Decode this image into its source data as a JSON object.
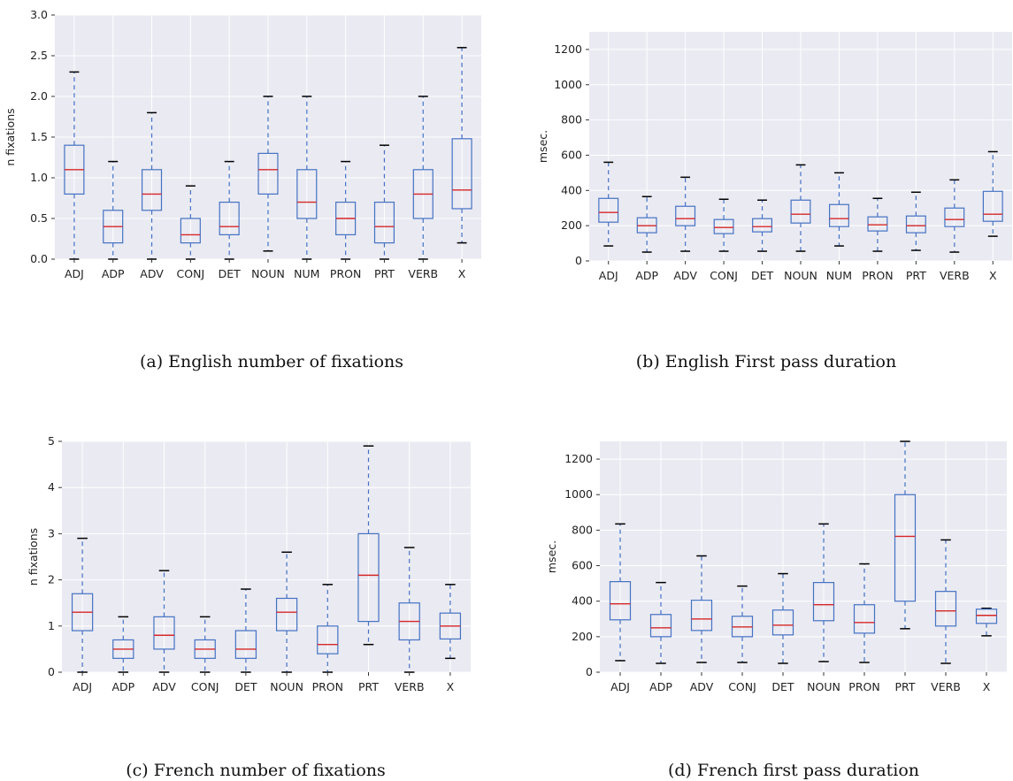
{
  "colors": {
    "plot_bg": "#eaeaf2",
    "grid": "#ffffff",
    "box": "#4472c4",
    "median": "#d62728",
    "whisker": "#4472c4",
    "cap": "#000000"
  },
  "captions": {
    "a": "(a) English number of fixations",
    "b": "(b) English First pass duration",
    "c": "(c) French number of fixations",
    "d": "(d) French first pass duration"
  },
  "chart_data": [
    {
      "type": "box",
      "ylabel": "n fixations",
      "ylim": [
        0,
        3.0
      ],
      "yticks": [
        0,
        0.5,
        1.0,
        1.5,
        2.0,
        2.5,
        3.0
      ],
      "ytick_labels": [
        "0.0",
        "0.5",
        "1.0",
        "1.5",
        "2.0",
        "2.5",
        "3.0"
      ],
      "grid": true,
      "categories": [
        "ADJ",
        "ADP",
        "ADV",
        "CONJ",
        "DET",
        "NOUN",
        "NUM",
        "PRON",
        "PRT",
        "VERB",
        "X"
      ],
      "boxes": [
        {
          "whislo": 0.0,
          "q1": 0.8,
          "med": 1.1,
          "q3": 1.4,
          "whishi": 2.3
        },
        {
          "whislo": 0.0,
          "q1": 0.2,
          "med": 0.4,
          "q3": 0.6,
          "whishi": 1.2
        },
        {
          "whislo": 0.0,
          "q1": 0.6,
          "med": 0.8,
          "q3": 1.1,
          "whishi": 1.8
        },
        {
          "whislo": 0.0,
          "q1": 0.2,
          "med": 0.3,
          "q3": 0.5,
          "whishi": 0.9
        },
        {
          "whislo": 0.0,
          "q1": 0.3,
          "med": 0.4,
          "q3": 0.7,
          "whishi": 1.2
        },
        {
          "whislo": 0.1,
          "q1": 0.8,
          "med": 1.1,
          "q3": 1.3,
          "whishi": 2.0
        },
        {
          "whislo": 0.0,
          "q1": 0.5,
          "med": 0.7,
          "q3": 1.1,
          "whishi": 2.0
        },
        {
          "whislo": 0.0,
          "q1": 0.3,
          "med": 0.5,
          "q3": 0.7,
          "whishi": 1.2
        },
        {
          "whislo": 0.0,
          "q1": 0.2,
          "med": 0.4,
          "q3": 0.7,
          "whishi": 1.4
        },
        {
          "whislo": 0.0,
          "q1": 0.5,
          "med": 0.8,
          "q3": 1.1,
          "whishi": 2.0
        },
        {
          "whislo": 0.2,
          "q1": 0.62,
          "med": 0.85,
          "q3": 1.48,
          "whishi": 2.6
        }
      ]
    },
    {
      "type": "box",
      "ylabel": "msec.",
      "ylim": [
        0,
        1300
      ],
      "yticks": [
        0,
        200,
        400,
        600,
        800,
        1000,
        1200
      ],
      "ytick_labels": [
        "0",
        "200",
        "400",
        "600",
        "800",
        "1000",
        "1200"
      ],
      "grid": true,
      "categories": [
        "ADJ",
        "ADP",
        "ADV",
        "CONJ",
        "DET",
        "NOUN",
        "NUM",
        "PRON",
        "PRT",
        "VERB",
        "X"
      ],
      "boxes": [
        {
          "whislo": 85,
          "q1": 220,
          "med": 275,
          "q3": 355,
          "whishi": 560
        },
        {
          "whislo": 50,
          "q1": 160,
          "med": 200,
          "q3": 245,
          "whishi": 365
        },
        {
          "whislo": 55,
          "q1": 200,
          "med": 240,
          "q3": 310,
          "whishi": 475
        },
        {
          "whislo": 55,
          "q1": 155,
          "med": 190,
          "q3": 235,
          "whishi": 350
        },
        {
          "whislo": 55,
          "q1": 165,
          "med": 195,
          "q3": 240,
          "whishi": 345
        },
        {
          "whislo": 55,
          "q1": 215,
          "med": 265,
          "q3": 345,
          "whishi": 545
        },
        {
          "whislo": 85,
          "q1": 195,
          "med": 240,
          "q3": 320,
          "whishi": 500
        },
        {
          "whislo": 55,
          "q1": 170,
          "med": 205,
          "q3": 250,
          "whishi": 355
        },
        {
          "whislo": 60,
          "q1": 160,
          "med": 200,
          "q3": 255,
          "whishi": 390
        },
        {
          "whislo": 50,
          "q1": 195,
          "med": 235,
          "q3": 300,
          "whishi": 460
        },
        {
          "whislo": 140,
          "q1": 225,
          "med": 265,
          "q3": 395,
          "whishi": 620
        }
      ]
    },
    {
      "type": "box",
      "ylabel": "n fixations",
      "ylim": [
        0,
        5
      ],
      "yticks": [
        0,
        1,
        2,
        3,
        4,
        5
      ],
      "ytick_labels": [
        "0",
        "1",
        "2",
        "3",
        "4",
        "5"
      ],
      "grid": true,
      "categories": [
        "ADJ",
        "ADP",
        "ADV",
        "CONJ",
        "DET",
        "NOUN",
        "PRON",
        "PRT",
        "VERB",
        "X"
      ],
      "boxes": [
        {
          "whislo": 0.0,
          "q1": 0.9,
          "med": 1.3,
          "q3": 1.7,
          "whishi": 2.9
        },
        {
          "whislo": 0.0,
          "q1": 0.3,
          "med": 0.5,
          "q3": 0.7,
          "whishi": 1.2
        },
        {
          "whislo": 0.0,
          "q1": 0.5,
          "med": 0.8,
          "q3": 1.2,
          "whishi": 2.2
        },
        {
          "whislo": 0.0,
          "q1": 0.3,
          "med": 0.5,
          "q3": 0.7,
          "whishi": 1.2
        },
        {
          "whislo": 0.0,
          "q1": 0.3,
          "med": 0.5,
          "q3": 0.9,
          "whishi": 1.8
        },
        {
          "whislo": 0.0,
          "q1": 0.9,
          "med": 1.3,
          "q3": 1.6,
          "whishi": 2.6
        },
        {
          "whislo": 0.0,
          "q1": 0.4,
          "med": 0.6,
          "q3": 1.0,
          "whishi": 1.9
        },
        {
          "whislo": 0.6,
          "q1": 1.1,
          "med": 2.1,
          "q3": 3.0,
          "whishi": 4.9
        },
        {
          "whislo": 0.0,
          "q1": 0.7,
          "med": 1.1,
          "q3": 1.5,
          "whishi": 2.7
        },
        {
          "whislo": 0.3,
          "q1": 0.72,
          "med": 1.0,
          "q3": 1.28,
          "whishi": 1.9
        }
      ]
    },
    {
      "type": "box",
      "ylabel": "msec.",
      "ylim": [
        0,
        1300
      ],
      "yticks": [
        0,
        200,
        400,
        600,
        800,
        1000,
        1200
      ],
      "ytick_labels": [
        "0",
        "200",
        "400",
        "600",
        "800",
        "1000",
        "1200"
      ],
      "grid": true,
      "categories": [
        "ADJ",
        "ADP",
        "ADV",
        "CONJ",
        "DET",
        "NOUN",
        "PRON",
        "PRT",
        "VERB",
        "X"
      ],
      "boxes": [
        {
          "whislo": 65,
          "q1": 295,
          "med": 385,
          "q3": 510,
          "whishi": 835
        },
        {
          "whislo": 50,
          "q1": 200,
          "med": 250,
          "q3": 325,
          "whishi": 505
        },
        {
          "whislo": 55,
          "q1": 235,
          "med": 300,
          "q3": 405,
          "whishi": 655
        },
        {
          "whislo": 55,
          "q1": 200,
          "med": 255,
          "q3": 315,
          "whishi": 485
        },
        {
          "whislo": 50,
          "q1": 210,
          "med": 265,
          "q3": 350,
          "whishi": 555
        },
        {
          "whislo": 60,
          "q1": 290,
          "med": 380,
          "q3": 505,
          "whishi": 835
        },
        {
          "whislo": 55,
          "q1": 220,
          "med": 280,
          "q3": 380,
          "whishi": 610
        },
        {
          "whislo": 245,
          "q1": 400,
          "med": 765,
          "q3": 1000,
          "whishi": 1300
        },
        {
          "whislo": 50,
          "q1": 260,
          "med": 345,
          "q3": 455,
          "whishi": 745
        },
        {
          "whislo": 205,
          "q1": 275,
          "med": 320,
          "q3": 355,
          "whishi": 360
        }
      ]
    }
  ]
}
